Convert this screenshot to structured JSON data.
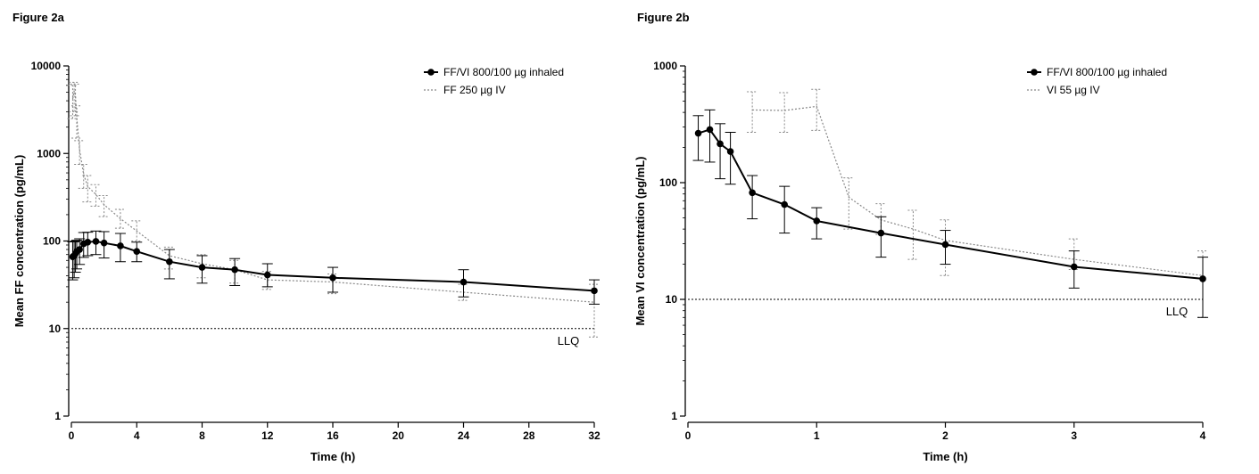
{
  "chart_data": [
    {
      "type": "line",
      "title": "Figure 2a",
      "xlabel": "Time (h)",
      "ylabel": "Mean FF concentration (pg/mL)",
      "xlim": [
        0,
        32
      ],
      "ylim": [
        1,
        10000
      ],
      "yscale": "log",
      "xticks": [
        "0",
        "4",
        "8",
        "12",
        "16",
        "20",
        "24",
        "28",
        "32"
      ],
      "yticks": [
        "1",
        "10",
        "100",
        "1000",
        "10000"
      ],
      "legend_position": "top-right",
      "llq": {
        "label": "LLQ",
        "value": 10
      },
      "series": [
        {
          "name": "FF/VI 800/100 µg inhaled",
          "style": "solid",
          "color": "#000000",
          "marker": "filled-circle",
          "x": [
            0.08,
            0.17,
            0.25,
            0.33,
            0.5,
            0.75,
            1,
            1.5,
            2,
            3,
            4,
            6,
            8,
            10,
            12,
            16,
            24,
            32
          ],
          "y": [
            66,
            68,
            72,
            76,
            80,
            93,
            97,
            99,
            95,
            88,
            76,
            58,
            50,
            47,
            41,
            38,
            34,
            27
          ],
          "y_err_low": [
            36,
            38,
            44,
            48,
            54,
            65,
            68,
            70,
            64,
            58,
            58,
            37,
            33,
            31,
            30,
            26,
            23,
            19
          ],
          "y_err_high": [
            98,
            98,
            100,
            102,
            106,
            125,
            126,
            130,
            128,
            122,
            97,
            80,
            68,
            63,
            55,
            50,
            47,
            36
          ]
        },
        {
          "name": "FF 250 µg IV",
          "style": "dotted",
          "color": "#888888",
          "marker": "none",
          "x": [
            0.08,
            0.17,
            0.25,
            0.33,
            0.5,
            0.75,
            1,
            1.5,
            2,
            3,
            4,
            6,
            8,
            10,
            12,
            16,
            24,
            32
          ],
          "y": [
            4200,
            5200,
            4600,
            2600,
            1100,
            580,
            420,
            340,
            260,
            180,
            130,
            68,
            55,
            47,
            36,
            34,
            26,
            20
          ],
          "y_err_low": [
            2500,
            3000,
            2700,
            1500,
            750,
            400,
            280,
            250,
            190,
            140,
            100,
            48,
            38,
            33,
            28,
            25,
            21,
            8
          ],
          "y_err_high": [
            6000,
            6500,
            6200,
            3500,
            1400,
            750,
            560,
            440,
            330,
            230,
            170,
            85,
            70,
            60,
            45,
            42,
            32,
            32
          ]
        }
      ]
    },
    {
      "type": "line",
      "title": "Figure 2b",
      "xlabel": "Time (h)",
      "ylabel": "Mean VI concentration (pg/mL)",
      "xlim": [
        0,
        4
      ],
      "ylim": [
        1,
        1000
      ],
      "yscale": "log",
      "xticks": [
        "0",
        "1",
        "2",
        "3",
        "4"
      ],
      "yticks": [
        "1",
        "10",
        "100",
        "1000"
      ],
      "legend_position": "top-right",
      "llq": {
        "label": "LLQ",
        "value": 10
      },
      "series": [
        {
          "name": "FF/VI 800/100 µg inhaled",
          "style": "solid",
          "color": "#000000",
          "marker": "filled-circle",
          "x": [
            0.08,
            0.17,
            0.25,
            0.33,
            0.5,
            0.75,
            1,
            1.5,
            2,
            3,
            4
          ],
          "y": [
            265,
            285,
            215,
            185,
            82,
            65,
            47,
            37,
            29.5,
            19,
            15
          ],
          "y_err_low": [
            155,
            150,
            108,
            97,
            49,
            37,
            33,
            23,
            20,
            12.5,
            7
          ],
          "y_err_high": [
            375,
            420,
            320,
            270,
            115,
            93,
            61,
            51,
            39,
            26,
            23
          ]
        },
        {
          "name": "VI 55 µg IV",
          "style": "dotted",
          "color": "#888888",
          "marker": "none",
          "x": [
            0.5,
            0.75,
            1,
            1.25,
            1.5,
            1.75,
            2,
            3,
            4
          ],
          "y": [
            420,
            415,
            450,
            75,
            48,
            40,
            32,
            22,
            16
          ],
          "y_err_low": [
            270,
            270,
            280,
            40,
            36,
            22,
            16,
            18,
            7
          ],
          "y_err_high": [
            600,
            590,
            630,
            110,
            66,
            58,
            48,
            33,
            26
          ]
        }
      ]
    }
  ]
}
